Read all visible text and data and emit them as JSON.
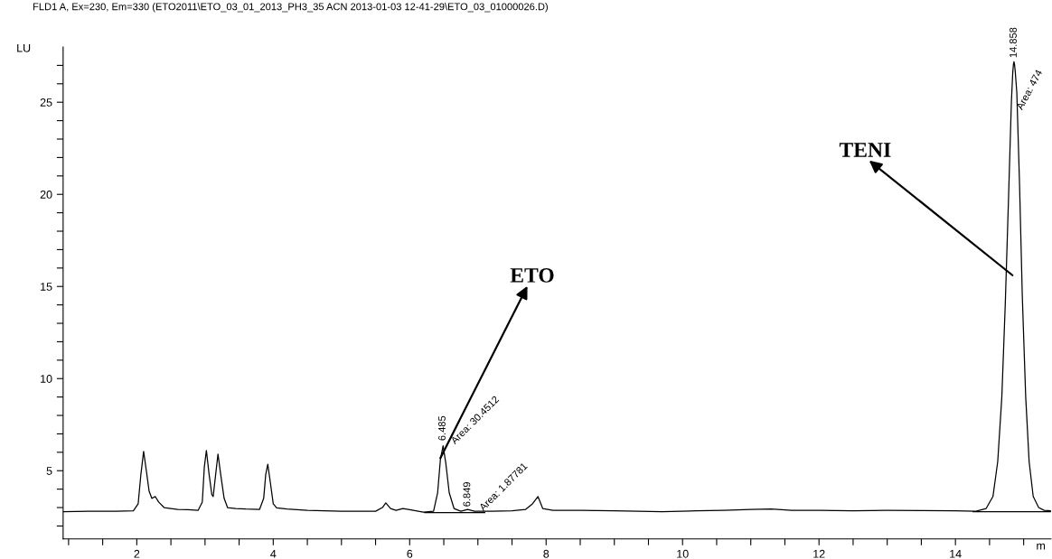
{
  "chart_data": {
    "type": "line",
    "title": "FLD1 A, Ex=230, Em=330 (ETO2011\\ETO_03_01_2013_PH3_35 ACN 2013-01-03 12-41-29\\ETO_03_01000026.D)",
    "xlabel": "m",
    "ylabel": "LU",
    "series": [
      {
        "color": "#000000",
        "x": [
          0.92,
          1.3,
          1.7,
          1.95,
          2.02,
          2.06,
          2.1,
          2.14,
          2.18,
          2.22,
          2.27,
          2.32,
          2.4,
          2.5,
          2.6,
          2.75,
          2.9,
          2.96,
          2.99,
          3.02,
          3.06,
          3.1,
          3.12,
          3.15,
          3.19,
          3.23,
          3.28,
          3.33,
          3.45,
          3.6,
          3.8,
          3.86,
          3.89,
          3.92,
          3.96,
          4.0,
          4.05,
          4.2,
          4.5,
          5.0,
          5.5,
          5.6,
          5.65,
          5.72,
          5.8,
          5.9,
          6.0,
          6.2,
          6.35,
          6.41,
          6.45,
          6.49,
          6.53,
          6.58,
          6.65,
          6.75,
          6.85,
          6.95,
          7.2,
          7.5,
          7.7,
          7.8,
          7.88,
          7.95,
          8.1,
          8.5,
          9.0,
          9.7,
          10.2,
          10.6,
          11.0,
          11.3,
          11.6,
          12.0,
          12.5,
          13.0,
          13.5,
          14.0,
          14.3,
          14.45,
          14.55,
          14.62,
          14.68,
          14.73,
          14.78,
          14.82,
          14.84,
          14.85,
          14.858,
          14.866,
          14.876,
          14.9,
          14.94,
          14.98,
          15.03,
          15.08,
          15.14,
          15.22,
          15.3,
          15.4
        ],
        "values": [
          2.78,
          2.8,
          2.8,
          2.82,
          3.2,
          4.8,
          6.05,
          5.0,
          3.9,
          3.5,
          3.6,
          3.3,
          3.0,
          2.95,
          2.9,
          2.88,
          2.85,
          3.3,
          5.2,
          6.1,
          4.8,
          3.7,
          3.6,
          4.6,
          5.9,
          4.8,
          3.5,
          3.0,
          2.95,
          2.92,
          2.9,
          3.5,
          4.8,
          5.35,
          4.3,
          3.2,
          2.98,
          2.92,
          2.85,
          2.8,
          2.8,
          3.0,
          3.25,
          2.95,
          2.85,
          2.95,
          2.88,
          2.75,
          2.8,
          3.8,
          5.6,
          6.35,
          5.4,
          3.8,
          2.95,
          2.8,
          2.9,
          2.8,
          2.8,
          2.82,
          2.9,
          3.2,
          3.6,
          2.95,
          2.85,
          2.85,
          2.82,
          2.78,
          2.82,
          2.85,
          2.9,
          2.92,
          2.85,
          2.85,
          2.83,
          2.85,
          2.84,
          2.82,
          2.8,
          2.95,
          3.6,
          5.5,
          9.0,
          14.0,
          20.0,
          25.0,
          26.6,
          27.05,
          27.2,
          27.05,
          26.7,
          25.5,
          20.5,
          14.5,
          9.0,
          5.5,
          3.6,
          3.0,
          2.85,
          2.82
        ]
      },
      {
        "color": "#000000",
        "x": [
          6.22,
          7.1
        ],
        "values": [
          2.72,
          2.72
        ]
      },
      {
        "color": "#000000",
        "x": [
          14.26,
          15.4
        ],
        "values": [
          2.78,
          2.78
        ]
      }
    ],
    "annotations": [
      {
        "text": "ETO",
        "x": 6.45,
        "y": 5.69
      },
      "TENI",
      {
        "text": "6.485",
        "x": 6.485,
        "y": 6.35
      },
      {
        "text": "Area: 30.4512",
        "x": 6.52,
        "y": 6.2
      },
      {
        "text": "6.849",
        "x": 6.849,
        "y": 2.9
      },
      {
        "text": "Area: 1.87781",
        "x": 6.9,
        "y": 2.85
      },
      {
        "text": "14.858",
        "x": 14.858,
        "y": 27.2
      },
      {
        "text": "Area: 474",
        "x": 14.93,
        "y": 24.5
      }
    ],
    "xlim": [
      0.92,
      15.4
    ],
    "xticks": [
      {
        "value": 1,
        "label": null
      },
      {
        "value": 1.5,
        "label": null
      },
      2,
      {
        "value": 2.5,
        "label": null
      },
      {
        "value": 3,
        "label": null
      },
      {
        "value": 3.5,
        "label": null
      },
      4,
      {
        "value": 4.5,
        "label": null
      },
      {
        "value": 5,
        "label": null
      },
      {
        "value": 5.5,
        "label": null
      },
      6,
      {
        "value": 6.5,
        "label": null
      },
      {
        "value": 7,
        "label": null
      },
      {
        "value": 7.5,
        "label": null
      },
      8,
      {
        "value": 8.5,
        "label": null
      },
      {
        "value": 9,
        "label": null
      },
      {
        "value": 9.5,
        "label": null
      },
      10,
      {
        "value": 10.5,
        "label": null
      },
      {
        "value": 11,
        "label": null
      },
      {
        "value": 11.5,
        "label": null
      },
      12,
      {
        "value": 12.5,
        "label": null
      },
      {
        "value": 13,
        "label": null
      },
      {
        "value": 13.5,
        "label": null
      },
      14,
      {
        "value": 14.5,
        "label": null
      },
      {
        "value": 15,
        "label": null
      }
    ],
    "ylim": [
      1.3,
      28
    ],
    "yticks": [
      {
        "value": 2,
        "label": null
      },
      {
        "value": 3,
        "label": null
      },
      {
        "value": 4,
        "label": null
      },
      5,
      {
        "value": 6,
        "label": null
      },
      {
        "value": 7,
        "label": null
      },
      {
        "value": 8,
        "label": null
      },
      {
        "value": 9,
        "label": null
      },
      10,
      {
        "value": 11,
        "label": null
      },
      {
        "value": 12,
        "label": null
      },
      {
        "value": 13,
        "label": null
      },
      {
        "value": 14,
        "label": null
      },
      15,
      {
        "value": 16,
        "label": null
      },
      {
        "value": 17,
        "label": null
      },
      {
        "value": 18,
        "label": null
      },
      {
        "value": 19,
        "label": null
      },
      20,
      {
        "value": 21,
        "label": null
      },
      {
        "value": 22,
        "label": null
      },
      {
        "value": 23,
        "label": null
      },
      {
        "value": 24,
        "label": null
      },
      25,
      {
        "value": 26,
        "label": null
      },
      {
        "value": 27,
        "label": null
      }
    ]
  }
}
